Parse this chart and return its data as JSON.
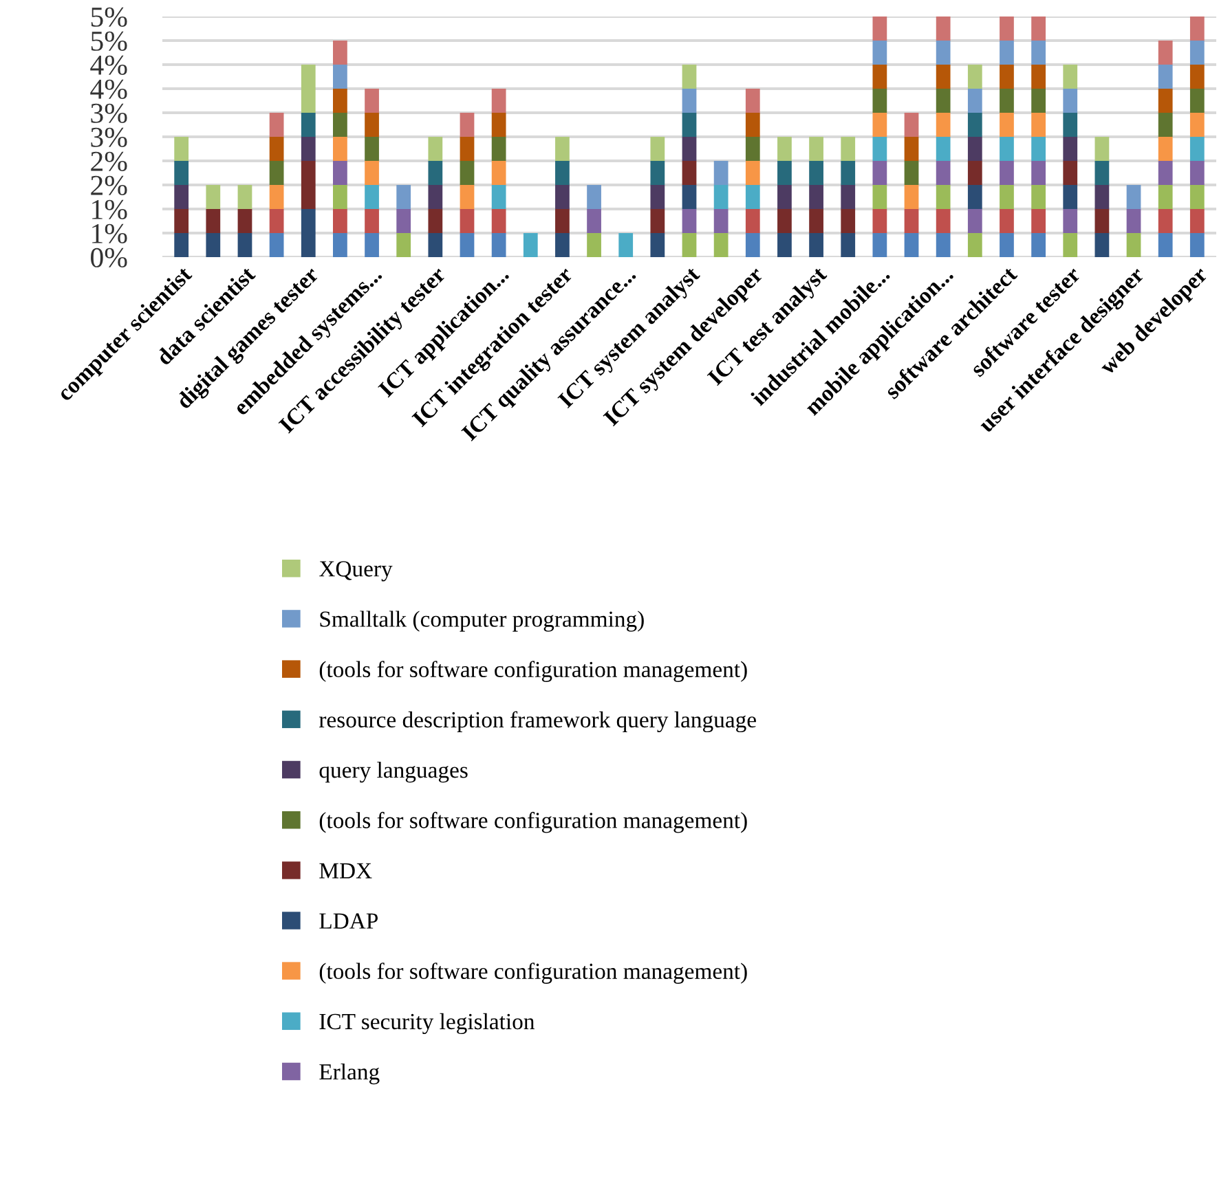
{
  "chart_data": {
    "type": "bar",
    "stacked": true,
    "grid": "y",
    "legend": "bottom",
    "categories": [
      "computer scientist",
      null,
      "data scientist",
      null,
      "digital games tester",
      null,
      "embedded systems...",
      null,
      "ICT accessibility tester",
      null,
      "ICT application...",
      null,
      "ICT integration tester",
      null,
      "ICT quality assurance...",
      null,
      "ICT system analyst",
      null,
      "ICT system developer",
      null,
      "ICT test analyst",
      null,
      "industrial mobile...",
      null,
      "mobile application...",
      null,
      "software architect",
      null,
      "software tester",
      null,
      "user interface designer",
      null,
      "web developer"
    ],
    "ylim": [
      0,
      5
    ],
    "yticks": [
      {
        "value": 0,
        "label": "0%"
      },
      {
        "value": 0.5,
        "label": "1%"
      },
      {
        "value": 1,
        "label": "1%"
      },
      {
        "value": 1.5,
        "label": "2%"
      },
      {
        "value": 2,
        "label": "2%"
      },
      {
        "value": 2.5,
        "label": "3%"
      },
      {
        "value": 3,
        "label": "3%"
      },
      {
        "value": 3.5,
        "label": "4%"
      },
      {
        "value": 4,
        "label": "4%"
      },
      {
        "value": 4.5,
        "label": "5%"
      },
      {
        "value": 5,
        "label": "5%"
      }
    ],
    "series": [
      {
        "color": "#4f81bd",
        "values": [
          null,
          null,
          null,
          0.5,
          null,
          0.5,
          0.5,
          null,
          null,
          0.5,
          0.5,
          null,
          null,
          null,
          null,
          null,
          null,
          null,
          0.5,
          null,
          null,
          null,
          0.5,
          0.5,
          0.5,
          null,
          0.5,
          0.5,
          null,
          null,
          null,
          0.5,
          0.5
        ]
      },
      {
        "color": "#c0504d",
        "values": [
          null,
          null,
          null,
          0.5,
          null,
          0.5,
          0.5,
          null,
          null,
          0.5,
          0.5,
          null,
          null,
          null,
          null,
          null,
          null,
          null,
          0.5,
          null,
          null,
          null,
          0.5,
          0.5,
          0.5,
          null,
          0.5,
          0.5,
          null,
          null,
          null,
          0.5,
          0.5
        ]
      },
      {
        "color": "#9bbb59",
        "values": [
          null,
          null,
          null,
          null,
          null,
          0.5,
          null,
          0.5,
          null,
          null,
          null,
          null,
          null,
          0.5,
          null,
          null,
          0.5,
          0.5,
          null,
          null,
          null,
          null,
          0.5,
          null,
          0.5,
          0.5,
          0.5,
          0.5,
          0.5,
          null,
          0.5,
          0.5,
          0.5
        ]
      },
      {
        "name": "Erlang",
        "color": "#8064a2",
        "values": [
          null,
          null,
          null,
          null,
          null,
          0.5,
          null,
          0.5,
          null,
          null,
          null,
          null,
          null,
          0.5,
          null,
          null,
          0.5,
          0.5,
          null,
          null,
          null,
          null,
          0.5,
          null,
          0.5,
          0.5,
          0.5,
          0.5,
          0.5,
          null,
          0.5,
          0.5,
          0.5
        ]
      },
      {
        "name": "ICT security legislation",
        "color": "#4bacc6",
        "values": [
          null,
          null,
          null,
          null,
          null,
          null,
          0.5,
          null,
          null,
          null,
          0.5,
          0.5,
          null,
          null,
          0.5,
          null,
          null,
          0.5,
          0.5,
          null,
          null,
          null,
          0.5,
          null,
          0.5,
          null,
          0.5,
          0.5,
          null,
          null,
          null,
          null,
          0.5
        ]
      },
      {
        "name": "(tools for software configuration management)",
        "color": "#f79646",
        "values": [
          null,
          null,
          null,
          0.5,
          null,
          0.5,
          0.5,
          null,
          null,
          0.5,
          0.5,
          null,
          null,
          null,
          null,
          null,
          null,
          null,
          0.5,
          null,
          null,
          null,
          0.5,
          0.5,
          0.5,
          null,
          0.5,
          0.5,
          null,
          null,
          null,
          0.5,
          0.5
        ]
      },
      {
        "name": "LDAP",
        "color": "#2c4d75",
        "values": [
          0.5,
          0.5,
          0.5,
          null,
          1,
          null,
          null,
          null,
          0.5,
          null,
          null,
          null,
          0.5,
          null,
          null,
          0.5,
          0.5,
          null,
          null,
          0.5,
          0.5,
          0.5,
          null,
          null,
          null,
          0.5,
          null,
          null,
          0.5,
          0.5,
          null,
          null,
          null
        ]
      },
      {
        "name": "MDX",
        "color": "#772c2a",
        "values": [
          0.5,
          0.5,
          0.5,
          null,
          1,
          null,
          null,
          null,
          0.5,
          null,
          null,
          null,
          0.5,
          null,
          null,
          0.5,
          0.5,
          null,
          null,
          0.5,
          0.5,
          0.5,
          null,
          null,
          null,
          0.5,
          null,
          null,
          0.5,
          0.5,
          null,
          null,
          null
        ]
      },
      {
        "name": "(tools for software configuration management)",
        "color": "#5f7530",
        "values": [
          null,
          null,
          null,
          0.5,
          null,
          0.5,
          0.5,
          null,
          null,
          0.5,
          0.5,
          null,
          null,
          null,
          null,
          null,
          null,
          null,
          0.5,
          null,
          null,
          null,
          0.5,
          0.5,
          0.5,
          null,
          0.5,
          0.5,
          null,
          null,
          null,
          0.5,
          0.5
        ]
      },
      {
        "name": "query languages",
        "color": "#4d3b62",
        "values": [
          0.5,
          null,
          null,
          null,
          0.5,
          null,
          null,
          null,
          0.5,
          null,
          null,
          null,
          0.5,
          null,
          null,
          0.5,
          0.5,
          null,
          null,
          0.5,
          0.5,
          0.5,
          null,
          null,
          null,
          0.5,
          null,
          null,
          0.5,
          0.5,
          null,
          null,
          null
        ]
      },
      {
        "name": "resource description framework query language",
        "color": "#276a7c",
        "values": [
          0.5,
          null,
          null,
          null,
          0.5,
          null,
          null,
          null,
          0.5,
          null,
          null,
          null,
          0.5,
          null,
          null,
          0.5,
          0.5,
          null,
          null,
          0.5,
          0.5,
          0.5,
          null,
          null,
          null,
          0.5,
          null,
          null,
          0.5,
          0.5,
          null,
          null,
          null
        ]
      },
      {
        "name": "(tools for software configuration management)",
        "color": "#b65708",
        "values": [
          null,
          null,
          null,
          0.5,
          null,
          0.5,
          0.5,
          null,
          null,
          0.5,
          0.5,
          null,
          null,
          null,
          null,
          null,
          null,
          null,
          0.5,
          null,
          null,
          null,
          0.5,
          0.5,
          0.5,
          null,
          0.5,
          0.5,
          null,
          null,
          null,
          0.5,
          0.5
        ]
      },
      {
        "name": "Smalltalk (computer programming)",
        "color": "#729aca",
        "values": [
          null,
          null,
          null,
          null,
          null,
          0.5,
          null,
          0.5,
          null,
          null,
          null,
          null,
          null,
          0.5,
          null,
          null,
          0.5,
          0.5,
          null,
          null,
          null,
          null,
          0.5,
          null,
          0.5,
          0.5,
          0.5,
          0.5,
          0.5,
          null,
          0.5,
          0.5,
          0.5
        ]
      },
      {
        "color": "#cd7371",
        "values": [
          null,
          null,
          null,
          0.5,
          null,
          0.5,
          0.5,
          null,
          null,
          0.5,
          0.5,
          null,
          null,
          null,
          null,
          null,
          null,
          null,
          0.5,
          null,
          null,
          null,
          0.5,
          0.5,
          0.5,
          null,
          0.5,
          0.5,
          null,
          null,
          null,
          0.5,
          0.5
        ]
      },
      {
        "name": "XQuery",
        "color": "#afc97a",
        "values": [
          0.5,
          0.5,
          0.5,
          null,
          1,
          null,
          null,
          null,
          0.5,
          null,
          null,
          null,
          0.5,
          null,
          null,
          0.5,
          0.5,
          null,
          null,
          0.5,
          0.5,
          0.5,
          null,
          null,
          null,
          0.5,
          null,
          null,
          0.5,
          0.5,
          null,
          null,
          null
        ]
      }
    ]
  }
}
